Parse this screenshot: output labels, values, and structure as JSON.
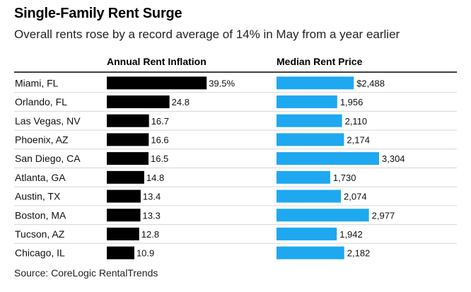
{
  "title": "Single-Family Rent Surge",
  "subtitle": "Overall rents rose by a record average of 14% in May from a year earlier",
  "source": "Source: CoreLogic RentalTrends",
  "colors": {
    "inflation": "#000000",
    "price": "#1ea8f0",
    "rule": "#000000",
    "rowLine": "#d6d6d6"
  },
  "chart_data": [
    {
      "type": "bar",
      "orientation": "horizontal",
      "title": "Annual Rent Inflation",
      "categories": [
        "Miami, FL",
        "Orlando, FL",
        "Las Vegas, NV",
        "Phoenix, AZ",
        "San Diego, CA",
        "Atlanta, GA",
        "Austin, TX",
        "Boston, MA",
        "Tucson, AZ",
        "Chicago, IL"
      ],
      "values": [
        39.5,
        24.8,
        16.7,
        16.6,
        16.5,
        14.8,
        13.4,
        13.3,
        12.8,
        10.9
      ],
      "labels": [
        "39.5%",
        "24.8",
        "16.7",
        "16.6",
        "16.5",
        "14.8",
        "13.4",
        "13.3",
        "12.8",
        "10.9"
      ],
      "xlim": [
        0,
        40
      ]
    },
    {
      "type": "bar",
      "orientation": "horizontal",
      "title": "Median Rent Price",
      "categories": [
        "Miami, FL",
        "Orlando, FL",
        "Las Vegas, NV",
        "Phoenix, AZ",
        "San Diego, CA",
        "Atlanta, GA",
        "Austin, TX",
        "Boston, MA",
        "Tucson, AZ",
        "Chicago, IL"
      ],
      "values": [
        2488,
        1956,
        2110,
        2174,
        3304,
        1730,
        2074,
        2977,
        1942,
        2182
      ],
      "labels": [
        "$2,488",
        "1,956",
        "2,110",
        "2,174",
        "3,304",
        "1,730",
        "2,074",
        "2,977",
        "1,942",
        "2,182"
      ],
      "xlim": [
        0,
        3304
      ]
    }
  ]
}
